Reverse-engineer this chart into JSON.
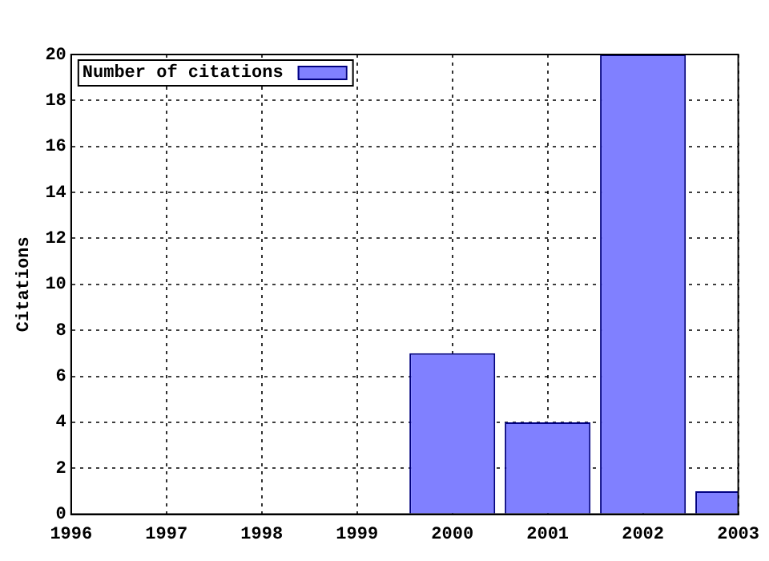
{
  "chart_data": {
    "type": "bar",
    "ylabel": "Citations",
    "x": [
      2000,
      2001,
      2002,
      2003
    ],
    "series": [
      {
        "name": "Number of citations",
        "color": "#8080ff",
        "values": [
          7,
          4,
          20,
          1
        ]
      }
    ],
    "xlim": [
      1996,
      2003
    ],
    "xticks": [
      1996,
      1997,
      1998,
      1999,
      2000,
      2001,
      2002,
      2003
    ],
    "ylim": [
      0,
      20
    ],
    "yticks": [
      0,
      2,
      4,
      6,
      8,
      10,
      12,
      14,
      16,
      18,
      20
    ],
    "grid": true,
    "legend": "top left"
  }
}
